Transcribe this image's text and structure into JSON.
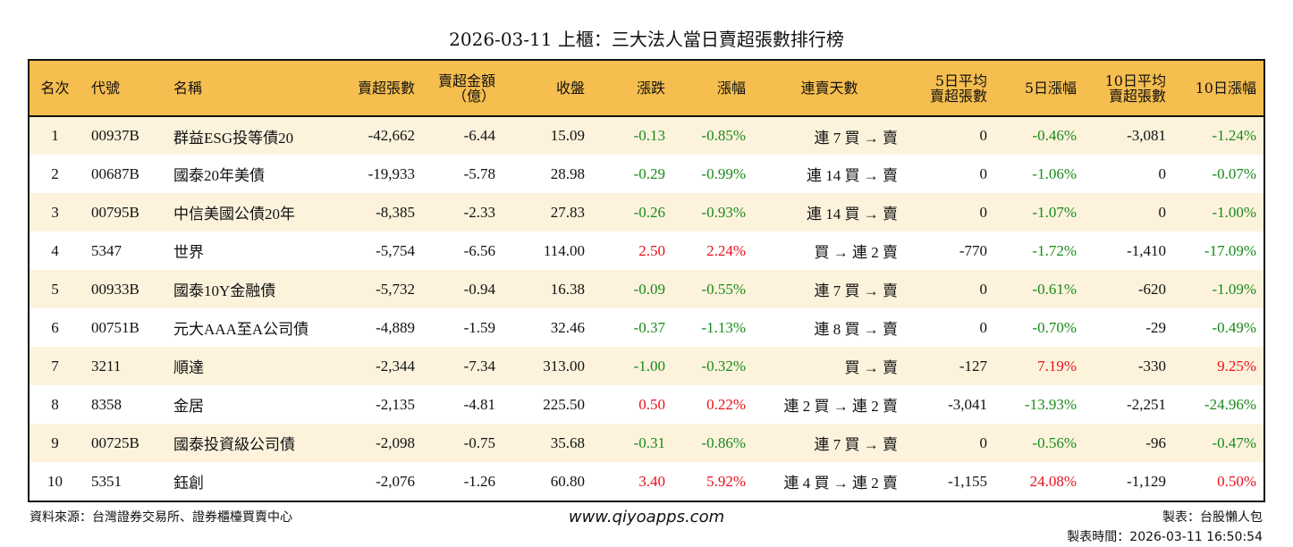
{
  "title": "2026-03-11 上櫃：三大法人當日賣超張數排行榜",
  "colors": {
    "header": "#F6BE4F",
    "row_alt": "#FDF3DD",
    "up": "#e8101a",
    "down": "#198a19"
  },
  "headers": [
    "名次",
    "代號",
    "名稱",
    "賣超張數",
    "賣超金額\n（億）",
    "收盤",
    "漲跌",
    "漲幅",
    "連賣天數",
    "5日平均\n賣超張數",
    "5日漲幅",
    "10日平均\n賣超張數",
    "10日漲幅"
  ],
  "rows": [
    [
      "1",
      "00937B",
      "群益ESG投等債20",
      "-42,662",
      "-6.44",
      "15.09",
      "-0.13",
      "-0.85%",
      "連 7 買 → 賣",
      "0",
      "-0.46%",
      "-3,081",
      "-1.24%"
    ],
    [
      "2",
      "00687B",
      "國泰20年美債",
      "-19,933",
      "-5.78",
      "28.98",
      "-0.29",
      "-0.99%",
      "連 14 買 → 賣",
      "0",
      "-1.06%",
      "0",
      "-0.07%"
    ],
    [
      "3",
      "00795B",
      "中信美國公債20年",
      "-8,385",
      "-2.33",
      "27.83",
      "-0.26",
      "-0.93%",
      "連 14 買 → 賣",
      "0",
      "-1.07%",
      "0",
      "-1.00%"
    ],
    [
      "4",
      "5347",
      "世界",
      "-5,754",
      "-6.56",
      "114.00",
      "2.50",
      "2.24%",
      "買 → 連 2 賣",
      "-770",
      "-1.72%",
      "-1,410",
      "-17.09%"
    ],
    [
      "5",
      "00933B",
      "國泰10Y金融債",
      "-5,732",
      "-0.94",
      "16.38",
      "-0.09",
      "-0.55%",
      "連 7 買 → 賣",
      "0",
      "-0.61%",
      "-620",
      "-1.09%"
    ],
    [
      "6",
      "00751B",
      "元大AAA至A公司債",
      "-4,889",
      "-1.59",
      "32.46",
      "-0.37",
      "-1.13%",
      "連 8 買 → 賣",
      "0",
      "-0.70%",
      "-29",
      "-0.49%"
    ],
    [
      "7",
      "3211",
      "順達",
      "-2,344",
      "-7.34",
      "313.00",
      "-1.00",
      "-0.32%",
      "買 → 賣",
      "-127",
      "7.19%",
      "-330",
      "9.25%"
    ],
    [
      "8",
      "8358",
      "金居",
      "-2,135",
      "-4.81",
      "225.50",
      "0.50",
      "0.22%",
      "連 2 買 → 連 2 賣",
      "-3,041",
      "-13.93%",
      "-2,251",
      "-24.96%"
    ],
    [
      "9",
      "00725B",
      "國泰投資級公司債",
      "-2,098",
      "-0.75",
      "35.68",
      "-0.31",
      "-0.86%",
      "連 7 買 → 賣",
      "0",
      "-0.56%",
      "-96",
      "-0.47%"
    ],
    [
      "10",
      "5351",
      "鈺創",
      "-2,076",
      "-1.26",
      "60.80",
      "3.40",
      "5.92%",
      "連 4 買 → 連 2 賣",
      "-1,155",
      "24.08%",
      "-1,129",
      "0.50%"
    ]
  ],
  "footer": {
    "source": "資料來源：台灣證券交易所、證券櫃檯買賣中心",
    "site": "www.qiyoapps.com",
    "author": "製表：台股懶人包",
    "time": "製表時間：2026-03-11 16:50:54"
  }
}
